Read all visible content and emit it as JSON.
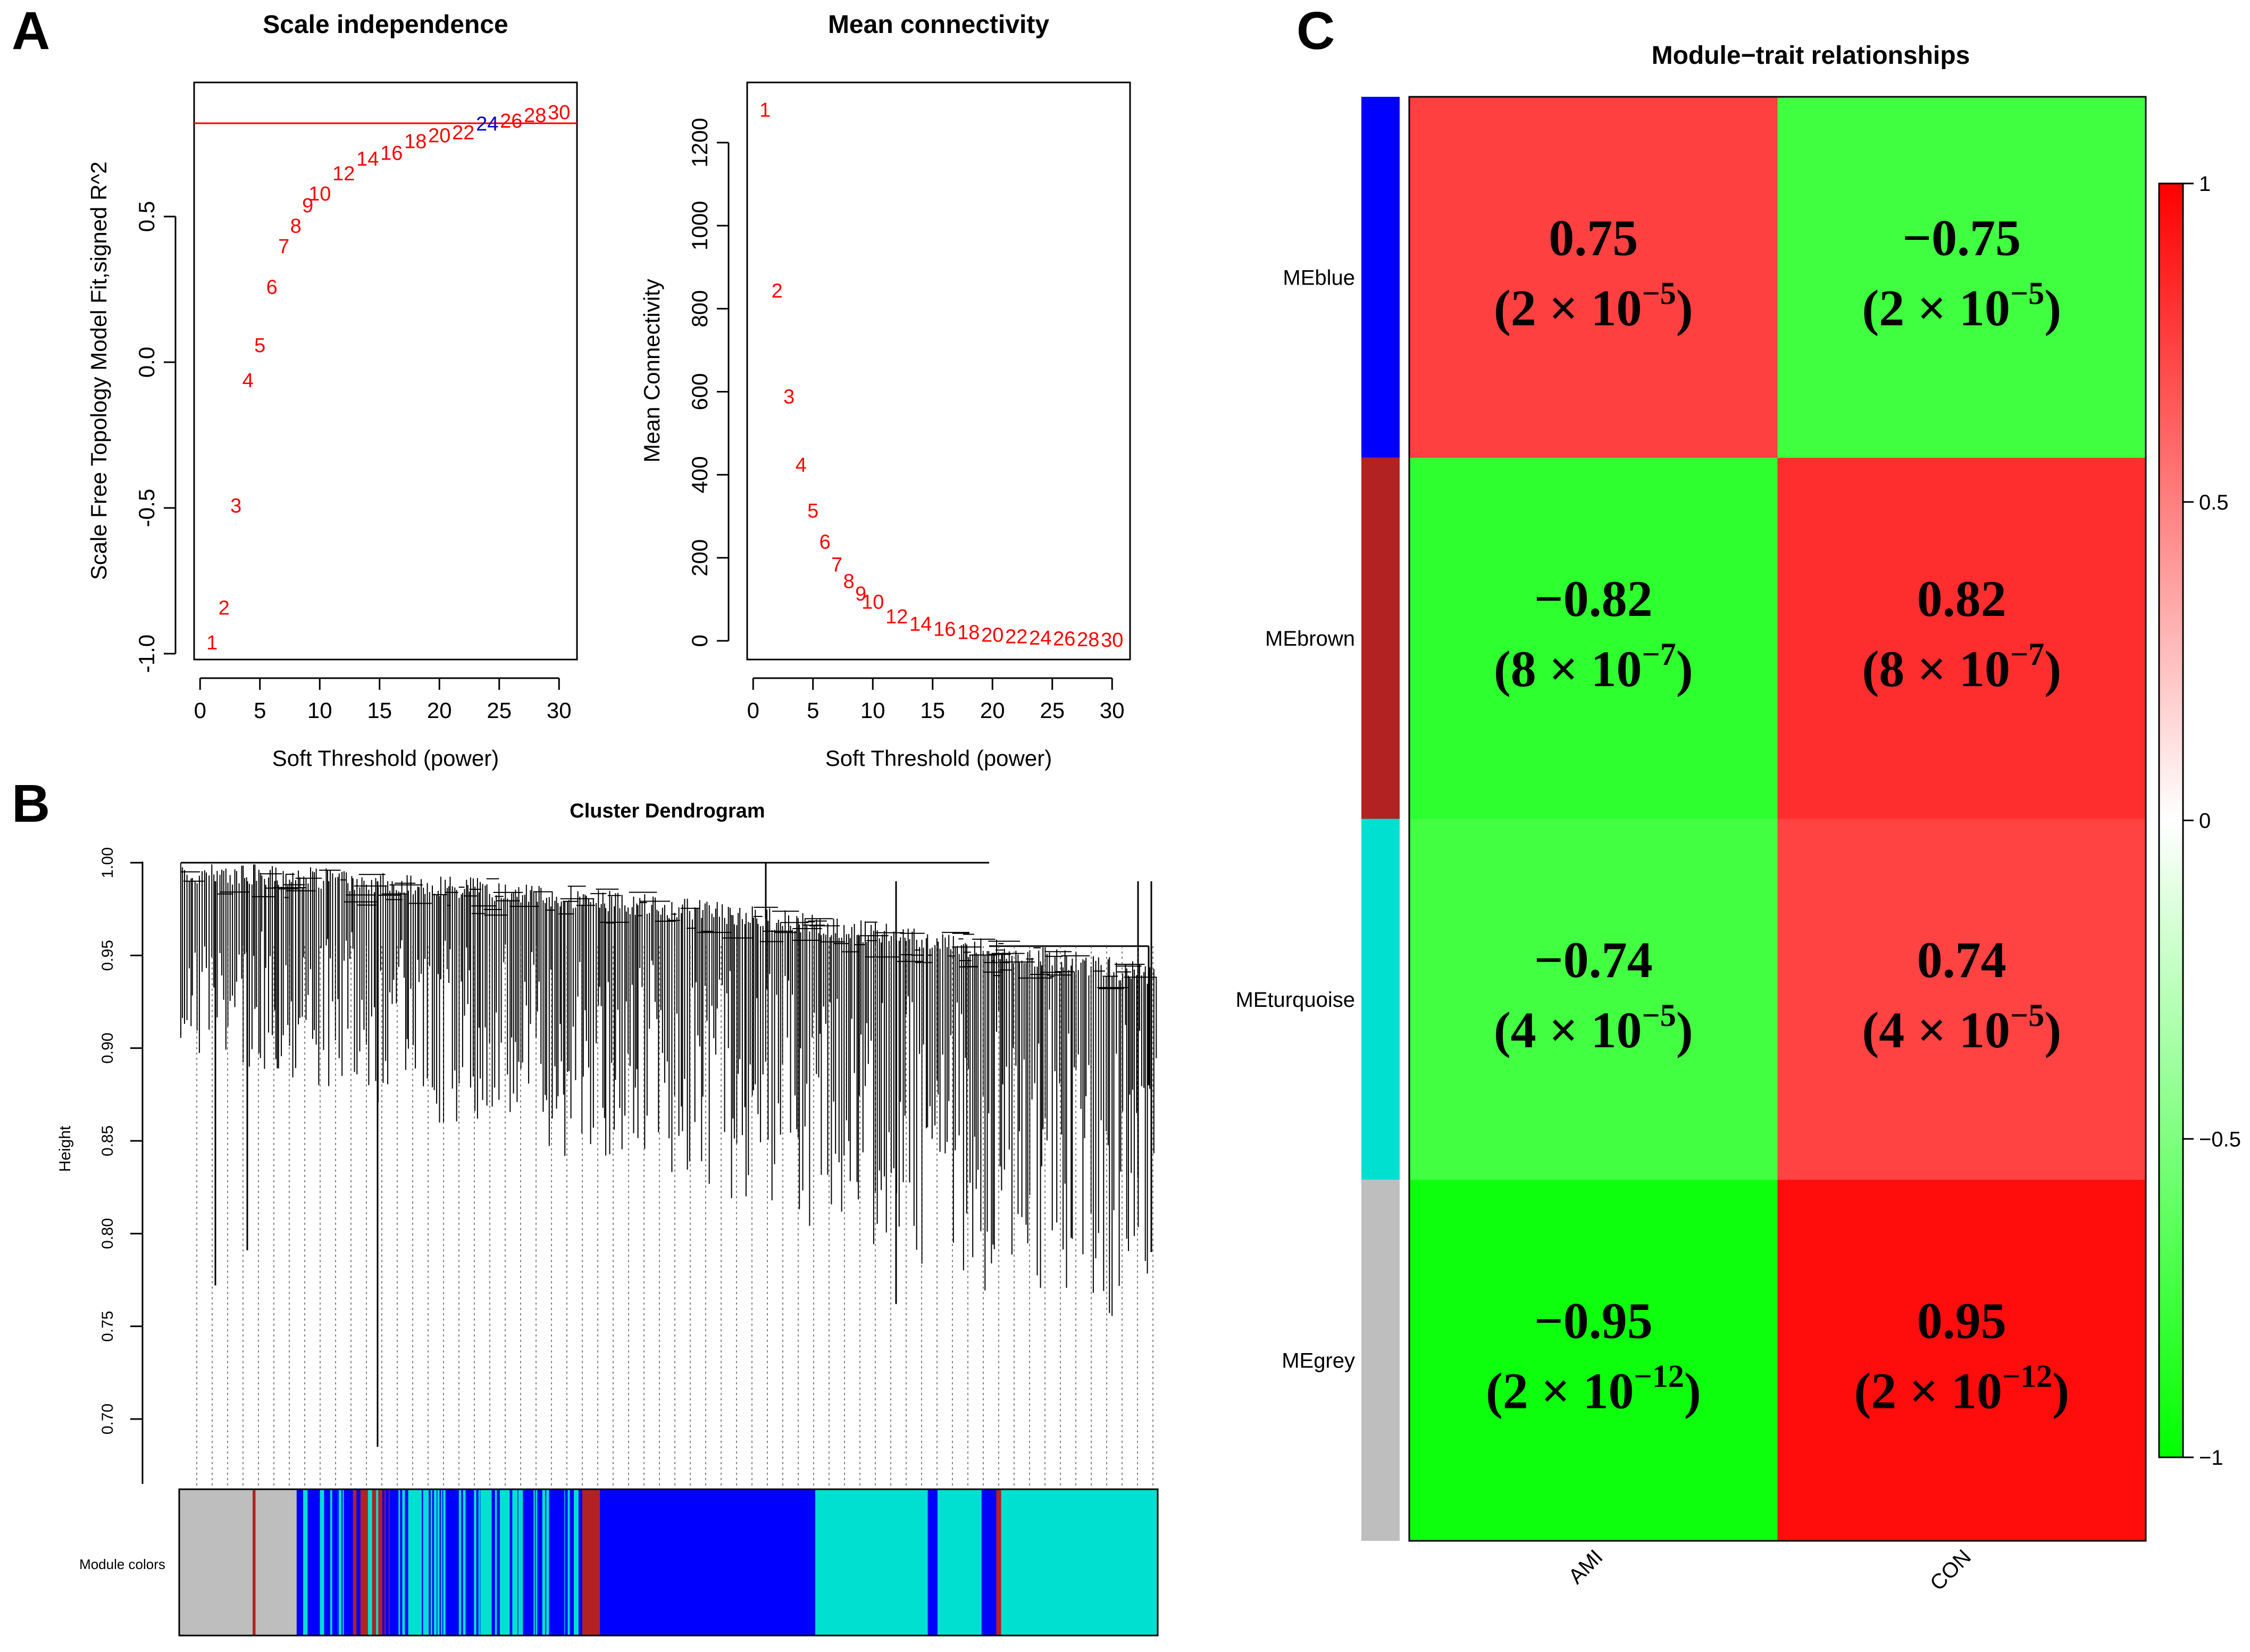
{
  "panels": {
    "a": "A",
    "b": "B",
    "c": "C"
  },
  "chart_data": [
    {
      "type": "scatter",
      "title": "Scale independence",
      "xlabel": "Soft Threshold (power)",
      "ylabel": "Scale Free Topology Model Fit,signed R^2",
      "xlim": [
        -0.5,
        31.5
      ],
      "ylim": [
        -1.02,
        0.96
      ],
      "xticks": [
        "0",
        "5",
        "10",
        "15",
        "20",
        "25",
        "30"
      ],
      "yticks": [
        "-1.0",
        "-0.5",
        "0.0",
        "0.5"
      ],
      "hline": 0.82,
      "points_color": "#ff0000",
      "highlight_color": "#0000cc",
      "highlight_power": 24,
      "points": [
        {
          "x": 1,
          "y": -0.96,
          "label": "1"
        },
        {
          "x": 2,
          "y": -0.84,
          "label": "2"
        },
        {
          "x": 3,
          "y": -0.49,
          "label": "3"
        },
        {
          "x": 4,
          "y": -0.06,
          "label": "4"
        },
        {
          "x": 5,
          "y": 0.06,
          "label": "5"
        },
        {
          "x": 6,
          "y": 0.26,
          "label": "6"
        },
        {
          "x": 7,
          "y": 0.4,
          "label": "7"
        },
        {
          "x": 8,
          "y": 0.47,
          "label": "8"
        },
        {
          "x": 9,
          "y": 0.54,
          "label": "9"
        },
        {
          "x": 10,
          "y": 0.58,
          "label": "10"
        },
        {
          "x": 12,
          "y": 0.65,
          "label": "12"
        },
        {
          "x": 14,
          "y": 0.7,
          "label": "14"
        },
        {
          "x": 16,
          "y": 0.72,
          "label": "16"
        },
        {
          "x": 18,
          "y": 0.76,
          "label": "18"
        },
        {
          "x": 20,
          "y": 0.78,
          "label": "20"
        },
        {
          "x": 22,
          "y": 0.79,
          "label": "22"
        },
        {
          "x": 24,
          "y": 0.82,
          "label": "24"
        },
        {
          "x": 26,
          "y": 0.83,
          "label": "26"
        },
        {
          "x": 28,
          "y": 0.85,
          "label": "28"
        },
        {
          "x": 30,
          "y": 0.86,
          "label": "30"
        }
      ]
    },
    {
      "type": "scatter",
      "title": "Mean connectivity",
      "xlabel": "Soft Threshold (power)",
      "ylabel": "Mean Connectivity",
      "xlim": [
        -0.5,
        31.5
      ],
      "ylim": [
        -45,
        1345
      ],
      "xticks": [
        "0",
        "5",
        "10",
        "15",
        "20",
        "25",
        "30"
      ],
      "yticks": [
        "0",
        "200",
        "400",
        "600",
        "800",
        "1000",
        "1200"
      ],
      "points_color": "#ff0000",
      "points": [
        {
          "x": 1,
          "y": 1280,
          "label": "1"
        },
        {
          "x": 2,
          "y": 845,
          "label": "2"
        },
        {
          "x": 3,
          "y": 590,
          "label": "3"
        },
        {
          "x": 4,
          "y": 425,
          "label": "4"
        },
        {
          "x": 5,
          "y": 315,
          "label": "5"
        },
        {
          "x": 6,
          "y": 240,
          "label": "6"
        },
        {
          "x": 7,
          "y": 185,
          "label": "7"
        },
        {
          "x": 8,
          "y": 145,
          "label": "8"
        },
        {
          "x": 9,
          "y": 115,
          "label": "9"
        },
        {
          "x": 10,
          "y": 95,
          "label": "10"
        },
        {
          "x": 12,
          "y": 60,
          "label": "12"
        },
        {
          "x": 14,
          "y": 42,
          "label": "14"
        },
        {
          "x": 16,
          "y": 30,
          "label": "16"
        },
        {
          "x": 18,
          "y": 22,
          "label": "18"
        },
        {
          "x": 20,
          "y": 16,
          "label": "20"
        },
        {
          "x": 22,
          "y": 12,
          "label": "22"
        },
        {
          "x": 24,
          "y": 9,
          "label": "24"
        },
        {
          "x": 26,
          "y": 7,
          "label": "26"
        },
        {
          "x": 28,
          "y": 5,
          "label": "28"
        },
        {
          "x": 30,
          "y": 4,
          "label": "30"
        }
      ]
    },
    {
      "type": "dendrogram",
      "title": "Cluster Dendrogram",
      "ylabel": "Height",
      "ylim": [
        0.665,
        1.0
      ],
      "yticks": [
        "0.70",
        "0.75",
        "0.80",
        "0.85",
        "0.90",
        "0.95",
        "1.00"
      ],
      "colorbar_label": "Module colors",
      "module_colors": {
        "grey": "#bebebe",
        "brown": "#b22222",
        "blue": "#0000ff",
        "turquoise": "#00e0d0"
      },
      "color_segments": [
        {
          "from": 0.0,
          "to": 0.075,
          "color": "grey"
        },
        {
          "from": 0.075,
          "to": 0.078,
          "color": "brown"
        },
        {
          "from": 0.078,
          "to": 0.12,
          "color": "grey"
        },
        {
          "from": 0.12,
          "to": 0.175,
          "color": "blue"
        },
        {
          "from": 0.175,
          "to": 0.215,
          "color": "brown"
        },
        {
          "from": 0.215,
          "to": 0.235,
          "color": "blue"
        },
        {
          "from": 0.235,
          "to": 0.255,
          "color": "turquoise"
        },
        {
          "from": 0.255,
          "to": 0.29,
          "color": "blue"
        },
        {
          "from": 0.29,
          "to": 0.345,
          "color": "turquoise"
        },
        {
          "from": 0.345,
          "to": 0.405,
          "color": "blue"
        },
        {
          "from": 0.405,
          "to": 0.43,
          "color": "brown"
        },
        {
          "from": 0.43,
          "to": 0.65,
          "color": "blue"
        },
        {
          "from": 0.65,
          "to": 0.765,
          "color": "turquoise"
        },
        {
          "from": 0.765,
          "to": 0.775,
          "color": "blue"
        },
        {
          "from": 0.775,
          "to": 0.82,
          "color": "turquoise"
        },
        {
          "from": 0.82,
          "to": 0.835,
          "color": "blue"
        },
        {
          "from": 0.835,
          "to": 0.84,
          "color": "brown"
        },
        {
          "from": 0.84,
          "to": 1.0,
          "color": "turquoise"
        }
      ]
    },
    {
      "type": "heatmap",
      "title": "Module−trait relationships",
      "rows": [
        "MEblue",
        "MEbrown",
        "MEturquoise",
        "MEgrey"
      ],
      "row_colors": [
        "#0000ff",
        "#b22222",
        "#00e0d0",
        "#bebebe"
      ],
      "columns": [
        "AMI",
        "CON"
      ],
      "values": [
        [
          0.75,
          -0.75
        ],
        [
          -0.82,
          0.82
        ],
        [
          -0.74,
          0.74
        ],
        [
          -0.95,
          0.95
        ]
      ],
      "cells": [
        [
          {
            "r": "0.75",
            "p_base": "(2 × 10",
            "p_exp": "−5",
            "p_close": ")"
          },
          {
            "r": "−0.75",
            "p_base": "(2 × 10",
            "p_exp": "−5",
            "p_close": ")"
          }
        ],
        [
          {
            "r": "−0.82",
            "p_base": "(8 × 10",
            "p_exp": "−7",
            "p_close": ")"
          },
          {
            "r": "0.82",
            "p_base": "(8 × 10",
            "p_exp": "−7",
            "p_close": ")"
          }
        ],
        [
          {
            "r": "−0.74",
            "p_base": "(4 × 10",
            "p_exp": "−5",
            "p_close": ")"
          },
          {
            "r": "0.74",
            "p_base": "(4 × 10",
            "p_exp": "−5",
            "p_close": ")"
          }
        ],
        [
          {
            "r": "−0.95",
            "p_base": "(2 × 10",
            "p_exp": "−12",
            "p_close": ")"
          },
          {
            "r": "0.95",
            "p_base": "(2 × 10",
            "p_exp": "−12",
            "p_close": ")"
          }
        ]
      ],
      "colorbar": {
        "min": -1,
        "max": 1,
        "ticks": [
          "1",
          "0.5",
          "0",
          "−0.5",
          "−1"
        ]
      }
    }
  ]
}
